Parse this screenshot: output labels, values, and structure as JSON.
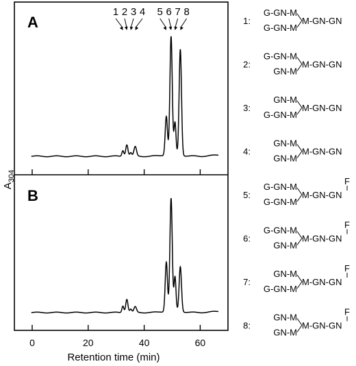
{
  "chart_data": {
    "type": "line",
    "xlabel": "Retention time (min)",
    "ylabel": "A",
    "ylabel_sub": "304",
    "xlim": [
      -2,
      68.5
    ],
    "xticks": [
      0,
      20,
      40,
      60
    ],
    "panels": [
      {
        "label": "A",
        "peak_numbers": [
          {
            "label": "1",
            "x": 32.4
          },
          {
            "label": "2",
            "x": 33.8
          },
          {
            "label": "3",
            "x": 35.2
          },
          {
            "label": "4",
            "x": 36.8
          },
          {
            "label": "5",
            "x": 47.9
          },
          {
            "label": "6",
            "x": 49.6
          },
          {
            "label": "7",
            "x": 51.0
          },
          {
            "label": "8",
            "x": 52.9
          }
        ],
        "peaks": [
          {
            "x": 32.4,
            "h": 0.05,
            "w": 0.35
          },
          {
            "x": 33.8,
            "h": 0.1,
            "w": 0.4
          },
          {
            "x": 35.2,
            "h": 0.03,
            "w": 0.35
          },
          {
            "x": 36.8,
            "h": 0.08,
            "w": 0.45
          },
          {
            "x": 47.9,
            "h": 0.33,
            "w": 0.4
          },
          {
            "x": 49.6,
            "h": 1.0,
            "w": 0.42
          },
          {
            "x": 51.0,
            "h": 0.27,
            "w": 0.35
          },
          {
            "x": 52.9,
            "h": 0.9,
            "w": 0.42
          }
        ]
      },
      {
        "label": "B",
        "peak_numbers": [],
        "peaks": [
          {
            "x": 32.4,
            "h": 0.06,
            "w": 0.35
          },
          {
            "x": 33.8,
            "h": 0.12,
            "w": 0.4
          },
          {
            "x": 35.2,
            "h": 0.03,
            "w": 0.35
          },
          {
            "x": 36.8,
            "h": 0.05,
            "w": 0.45
          },
          {
            "x": 47.9,
            "h": 0.44,
            "w": 0.4
          },
          {
            "x": 49.6,
            "h": 1.0,
            "w": 0.42
          },
          {
            "x": 51.0,
            "h": 0.3,
            "w": 0.35
          },
          {
            "x": 52.9,
            "h": 0.4,
            "w": 0.42
          }
        ]
      }
    ]
  },
  "structures": [
    {
      "num": "1:",
      "top": "G-GN-M",
      "bottom": "G-GN-M",
      "core": "M-GN-GN",
      "fucose": ""
    },
    {
      "num": "2:",
      "top": "G-GN-M",
      "bottom": "GN-M",
      "core": "M-GN-GN",
      "fucose": ""
    },
    {
      "num": "3:",
      "top": "GN-M",
      "bottom": "G-GN-M",
      "core": "M-GN-GN",
      "fucose": ""
    },
    {
      "num": "4:",
      "top": "GN-M",
      "bottom": "GN-M",
      "core": "M-GN-GN",
      "fucose": ""
    },
    {
      "num": "5:",
      "top": "G-GN-M",
      "bottom": "G-GN-M",
      "core": "M-GN-GN",
      "fucose": "F"
    },
    {
      "num": "6:",
      "top": "G-GN-M",
      "bottom": "GN-M",
      "core": "M-GN-GN",
      "fucose": "F"
    },
    {
      "num": "7:",
      "top": "GN-M",
      "bottom": "G-GN-M",
      "core": "M-GN-GN",
      "fucose": "F"
    },
    {
      "num": "8:",
      "top": "GN-M",
      "bottom": "GN-M",
      "core": "M-GN-GN",
      "fucose": "F"
    }
  ]
}
